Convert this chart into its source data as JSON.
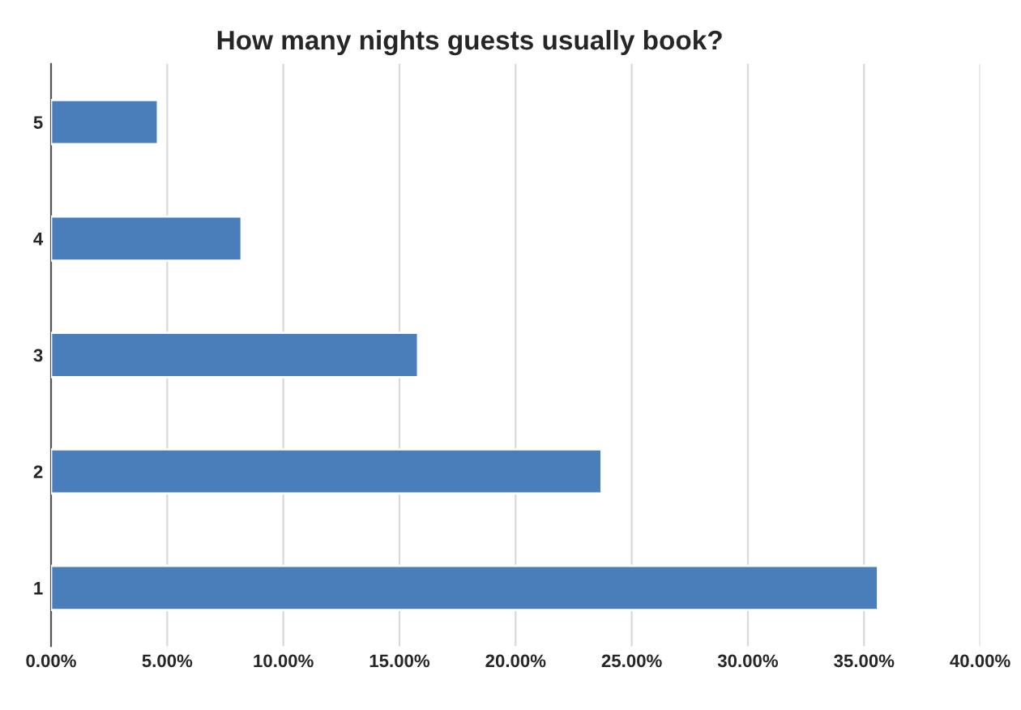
{
  "chart_data": {
    "type": "bar",
    "orientation": "horizontal",
    "title": "How many nights guests usually book?",
    "categories": [
      "5",
      "4",
      "3",
      "2",
      "1"
    ],
    "values": [
      4.6,
      8.2,
      15.8,
      23.7,
      35.6
    ],
    "color": "#4a7ebb",
    "xlim": [
      0,
      40
    ],
    "xticks": [
      {
        "value": 0,
        "label": "0.00%"
      },
      {
        "value": 5,
        "label": "5.00%"
      },
      {
        "value": 10,
        "label": "10.00%"
      },
      {
        "value": 15,
        "label": "15.00%"
      },
      {
        "value": 20,
        "label": "20.00%"
      },
      {
        "value": 25,
        "label": "25.00%"
      },
      {
        "value": 30,
        "label": "30.00%"
      },
      {
        "value": 35,
        "label": "35.00%"
      },
      {
        "value": 40,
        "label": "40.00%"
      }
    ],
    "grid": "x",
    "legend": false
  }
}
